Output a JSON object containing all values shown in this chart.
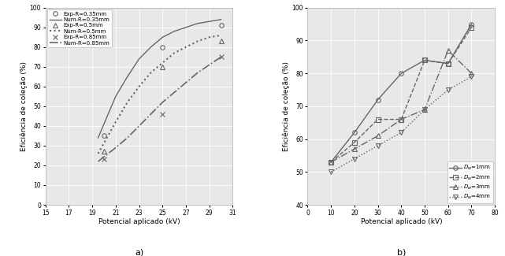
{
  "chart_a": {
    "title": "a)",
    "xlabel": "Potencial aplicado (kV)",
    "ylabel": "Eficiência de coleção (%)",
    "xlim": [
      15,
      31
    ],
    "ylim": [
      0,
      100
    ],
    "xticks": [
      15,
      17,
      19,
      21,
      23,
      25,
      27,
      29,
      31
    ],
    "yticks": [
      0,
      10,
      20,
      30,
      40,
      50,
      60,
      70,
      80,
      90,
      100
    ],
    "series": [
      {
        "label": "Exp-R=0.35mm",
        "x": [
          20,
          25,
          30
        ],
        "y": [
          35,
          80,
          91
        ],
        "marker": "o",
        "linestyle": "",
        "color": "#666666",
        "markersize": 4,
        "fillstyle": "none",
        "linewidth": 1.0
      },
      {
        "label": "Num-R=0.35mm",
        "x": [
          19.5,
          21,
          22,
          23,
          24,
          25,
          26,
          27,
          28,
          29,
          30
        ],
        "y": [
          34,
          55,
          65,
          74,
          80,
          85,
          88,
          90,
          92,
          93,
          94
        ],
        "marker": "",
        "linestyle": "-",
        "color": "#666666",
        "markersize": 0,
        "fillstyle": "full",
        "linewidth": 1.0
      },
      {
        "label": "Exp-R=0.5mm",
        "x": [
          20,
          25,
          30
        ],
        "y": [
          27,
          70,
          83
        ],
        "marker": "^",
        "linestyle": "",
        "color": "#666666",
        "markersize": 4,
        "fillstyle": "none",
        "linewidth": 1.0
      },
      {
        "label": "Num-R=0.5mm",
        "x": [
          19.5,
          21,
          22,
          23,
          24,
          25,
          26,
          27,
          28,
          29,
          30
        ],
        "y": [
          26,
          42,
          52,
          60,
          67,
          72,
          77,
          80,
          83,
          85,
          86
        ],
        "marker": "",
        "linestyle": ":",
        "color": "#666666",
        "markersize": 0,
        "fillstyle": "full",
        "linewidth": 1.5
      },
      {
        "label": "Exp-R=0.85mm",
        "x": [
          20,
          25,
          30
        ],
        "y": [
          23,
          46,
          75
        ],
        "marker": "x",
        "linestyle": "",
        "color": "#666666",
        "markersize": 4,
        "fillstyle": "full",
        "linewidth": 1.0
      },
      {
        "label": "Num-R=0.85mm",
        "x": [
          19.5,
          21,
          22,
          23,
          24,
          25,
          26,
          27,
          28,
          29,
          30
        ],
        "y": [
          22,
          29,
          34,
          40,
          46,
          52,
          57,
          62,
          67,
          71,
          75
        ],
        "marker": "",
        "linestyle": "-.",
        "color": "#666666",
        "markersize": 0,
        "fillstyle": "full",
        "linewidth": 1.2
      }
    ]
  },
  "chart_b": {
    "title": "b)",
    "xlabel": "Potencial aplicado (kV)",
    "ylabel": "Eficiência de coleção (%)",
    "xlim": [
      0,
      80
    ],
    "ylim": [
      40,
      100
    ],
    "xticks": [
      0,
      10,
      20,
      30,
      40,
      50,
      60,
      70,
      80
    ],
    "yticks": [
      40,
      50,
      60,
      70,
      80,
      90,
      100
    ],
    "series": [
      {
        "label": "D_w=1mm",
        "x": [
          10,
          20,
          30,
          40,
          50,
          60,
          70
        ],
        "y": [
          53,
          62,
          72,
          80,
          84,
          83,
          95
        ],
        "marker": "o",
        "linestyle": "-",
        "color": "#666666",
        "markersize": 4,
        "fillstyle": "none",
        "linewidth": 1.0
      },
      {
        "label": "D_w=2mm",
        "x": [
          10,
          20,
          30,
          40,
          50,
          60,
          70
        ],
        "y": [
          53,
          59,
          66,
          66,
          84,
          83,
          94
        ],
        "marker": "s",
        "linestyle": "--",
        "color": "#666666",
        "markersize": 4,
        "fillstyle": "none",
        "linewidth": 1.0
      },
      {
        "label": "D_w=3mm",
        "x": [
          10,
          20,
          30,
          40,
          50,
          60,
          70
        ],
        "y": [
          53,
          57,
          61,
          66,
          69,
          87,
          80
        ],
        "marker": "^",
        "linestyle": "-.",
        "color": "#666666",
        "markersize": 4,
        "fillstyle": "none",
        "linewidth": 1.0
      },
      {
        "label": "D_w=4mm",
        "x": [
          10,
          20,
          30,
          40,
          50,
          60,
          70
        ],
        "y": [
          50,
          54,
          58,
          62,
          69,
          75,
          79
        ],
        "marker": "v",
        "linestyle": ":",
        "color": "#666666",
        "markersize": 4,
        "fillstyle": "none",
        "linewidth": 1.0
      }
    ]
  },
  "background_color": "#ffffff",
  "plot_bg_color": "#e8e8e8",
  "grid_color": "#ffffff"
}
